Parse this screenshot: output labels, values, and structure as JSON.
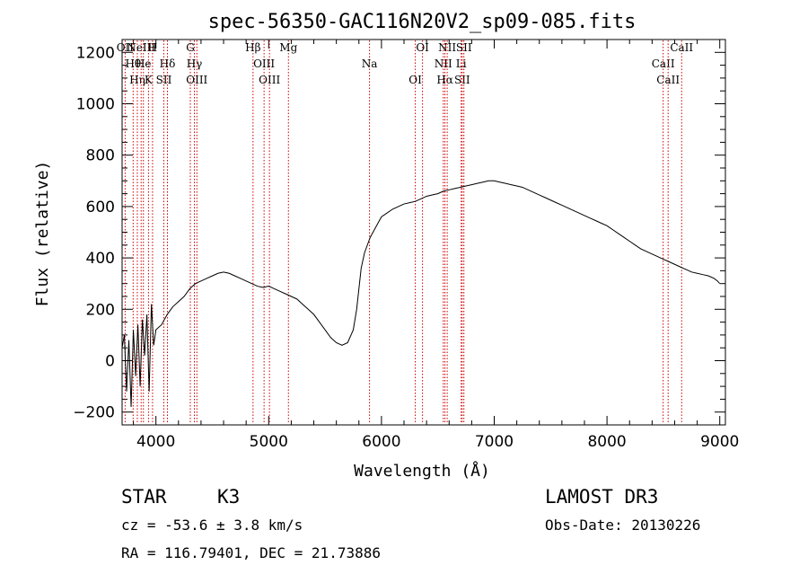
{
  "chart_data": {
    "type": "line",
    "title": "spec-56350-GAC116N20V2_sp09-085.fits",
    "xlabel": "Wavelength (Å)",
    "ylabel": "Flux (relative)",
    "xlim": [
      3700,
      9050
    ],
    "ylim": [
      -250,
      1250
    ],
    "x_ticks": [
      4000,
      5000,
      6000,
      7000,
      8000,
      9000
    ],
    "x_tick_labels": [
      "4000",
      "5000",
      "6000",
      "7000",
      "8000",
      "9000"
    ],
    "y_ticks": [
      -200,
      0,
      200,
      400,
      600,
      800,
      1000,
      1200
    ],
    "y_tick_labels": [
      "−200",
      "0",
      "200",
      "400",
      "600",
      "800",
      "1000",
      "1200"
    ],
    "grid": false,
    "series": [
      {
        "name": "flux",
        "x": [
          3700,
          3720,
          3740,
          3760,
          3780,
          3800,
          3820,
          3840,
          3860,
          3880,
          3900,
          3920,
          3940,
          3960,
          3980,
          4000,
          4050,
          4100,
          4150,
          4200,
          4250,
          4300,
          4350,
          4400,
          4450,
          4500,
          4550,
          4600,
          4650,
          4700,
          4750,
          4800,
          4850,
          4900,
          4950,
          5000,
          5050,
          5100,
          5150,
          5200,
          5250,
          5300,
          5350,
          5400,
          5450,
          5500,
          5550,
          5600,
          5650,
          5700,
          5750,
          5780,
          5800,
          5820,
          5850,
          5900,
          5950,
          6000,
          6050,
          6100,
          6150,
          6200,
          6250,
          6300,
          6350,
          6400,
          6450,
          6500,
          6550,
          6600,
          6650,
          6700,
          6750,
          6800,
          6850,
          6900,
          6950,
          7000,
          7050,
          7100,
          7150,
          7200,
          7250,
          7300,
          7350,
          7400,
          7450,
          7500,
          7550,
          7600,
          7650,
          7700,
          7750,
          7800,
          7850,
          7900,
          7950,
          8000,
          8050,
          8100,
          8150,
          8200,
          8250,
          8300,
          8350,
          8400,
          8450,
          8500,
          8550,
          8600,
          8650,
          8700,
          8750,
          8800,
          8850,
          8900,
          8950,
          8980,
          9000
        ],
        "values": [
          50,
          100,
          -120,
          80,
          -180,
          120,
          -60,
          140,
          -100,
          160,
          20,
          180,
          -120,
          220,
          60,
          120,
          140,
          180,
          210,
          230,
          250,
          280,
          300,
          310,
          320,
          330,
          340,
          345,
          340,
          330,
          320,
          310,
          300,
          290,
          285,
          290,
          280,
          270,
          260,
          250,
          240,
          220,
          200,
          180,
          150,
          120,
          90,
          70,
          60,
          70,
          120,
          200,
          280,
          360,
          420,
          480,
          520,
          560,
          575,
          590,
          600,
          610,
          615,
          620,
          630,
          640,
          645,
          650,
          660,
          665,
          670,
          675,
          680,
          685,
          690,
          695,
          700,
          700,
          695,
          690,
          685,
          680,
          675,
          665,
          655,
          645,
          635,
          625,
          615,
          605,
          595,
          585,
          575,
          565,
          555,
          545,
          535,
          525,
          510,
          495,
          480,
          465,
          450,
          435,
          425,
          415,
          405,
          395,
          385,
          375,
          365,
          355,
          345,
          340,
          335,
          330,
          320,
          310,
          300
        ]
      }
    ],
    "lines": [
      {
        "x": 3727,
        "names": [
          "OII"
        ]
      },
      {
        "x": 3798,
        "names": [
          "Hθ"
        ]
      },
      {
        "x": 3835,
        "names": [
          "Hη"
        ]
      },
      {
        "x": 3869,
        "names": [
          "NeIII"
        ]
      },
      {
        "x": 3889,
        "names": [
          "He"
        ]
      },
      {
        "x": 3934,
        "names": [
          "K"
        ]
      },
      {
        "x": 3970,
        "names": [
          "H"
        ]
      },
      {
        "x": 4102,
        "names": [
          "Hδ"
        ]
      },
      {
        "x": 4070,
        "names": [
          "SII"
        ]
      },
      {
        "x": 4305,
        "names": [
          "G"
        ]
      },
      {
        "x": 4341,
        "names": [
          "Hγ"
        ]
      },
      {
        "x": 4363,
        "names": [
          "OIII"
        ]
      },
      {
        "x": 4861,
        "names": [
          "Hβ"
        ]
      },
      {
        "x": 4959,
        "names": [
          "OIII"
        ]
      },
      {
        "x": 5007,
        "names": [
          "OIII"
        ]
      },
      {
        "x": 5175,
        "names": [
          "Mg"
        ]
      },
      {
        "x": 5894,
        "names": [
          "Na"
        ]
      },
      {
        "x": 6300,
        "names": [
          "OI"
        ]
      },
      {
        "x": 6364,
        "names": [
          "OI"
        ]
      },
      {
        "x": 6548,
        "names": [
          "NII"
        ]
      },
      {
        "x": 6563,
        "names": [
          "Hα"
        ]
      },
      {
        "x": 6583,
        "names": [
          "NII"
        ]
      },
      {
        "x": 6707,
        "names": [
          "Li"
        ]
      },
      {
        "x": 6716,
        "names": [
          "SII"
        ]
      },
      {
        "x": 6731,
        "names": [
          "SII"
        ]
      },
      {
        "x": 8498,
        "names": [
          "CaII"
        ]
      },
      {
        "x": 8542,
        "names": [
          "CaII"
        ]
      },
      {
        "x": 8662,
        "names": [
          "CaII"
        ]
      }
    ]
  },
  "info": {
    "object_class": "STAR",
    "subclass": "K3",
    "redshift": "cz = -53.6 ± 3.8 km/s",
    "coords": "RA = 116.79401, DEC =  21.73886",
    "survey": "LAMOST DR3",
    "obs_date": "Obs-Date: 20130226"
  }
}
